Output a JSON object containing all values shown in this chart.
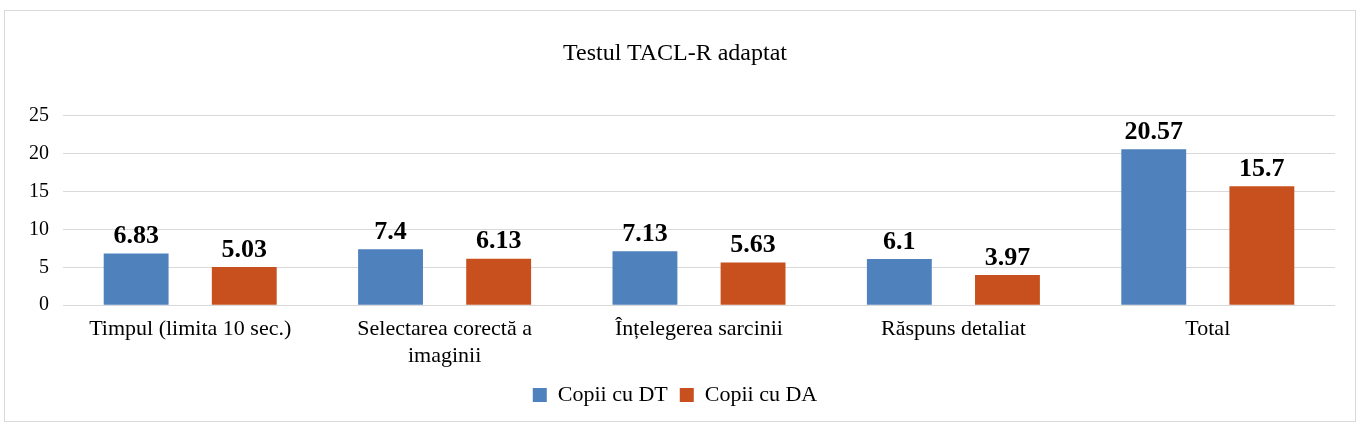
{
  "chart_data": {
    "type": "bar",
    "title": "Testul TACL-R adaptat",
    "categories": [
      "Timpul (limita 10 sec.)",
      "Selectarea corectă a imaginii",
      "Înțelegerea sarcinii",
      "Răspuns detaliat",
      "Total"
    ],
    "series": [
      {
        "name": "Copii cu DT",
        "color": "#4f81bd",
        "values": [
          6.83,
          7.4,
          7.13,
          6.1,
          20.57
        ]
      },
      {
        "name": "Copii cu DA",
        "color": "#c8501e",
        "values": [
          5.03,
          6.13,
          5.63,
          3.97,
          15.7
        ]
      }
    ],
    "ylim": [
      0,
      25
    ],
    "yticks": [
      0,
      5,
      10,
      15,
      20,
      25
    ],
    "grid": "y",
    "legend": "bottom",
    "data_labels": true
  }
}
